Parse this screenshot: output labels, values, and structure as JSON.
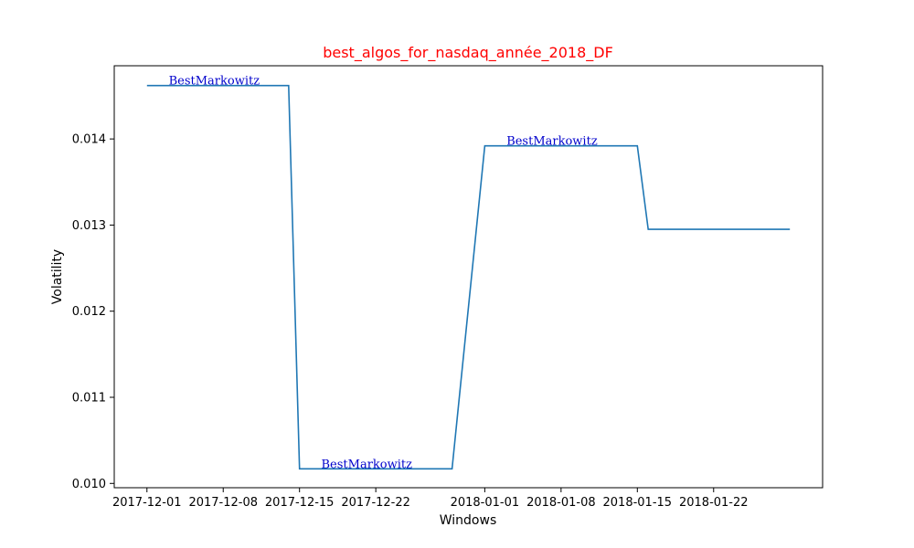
{
  "chart_data": {
    "type": "line",
    "title": "best_algos_for_nasdaq_année_2018_DF",
    "xlabel": "Windows",
    "ylabel": "Volatility",
    "colors": {
      "line": "#1f77b4",
      "title": "#ff0000",
      "annotation": "#0000cc"
    },
    "x_ticks": [
      "2017-12-01",
      "2017-12-08",
      "2017-12-15",
      "2017-12-22",
      "2018-01-01",
      "2018-01-08",
      "2018-01-15",
      "2018-01-22"
    ],
    "y_ticks": [
      "0.010",
      "0.011",
      "0.012",
      "0.013",
      "0.014"
    ],
    "xlim": [
      "2017-11-28",
      "2018-02-01"
    ],
    "ylim": [
      0.00995,
      0.01485
    ],
    "grid": false,
    "legend": "none",
    "series": [
      {
        "x": [
          "2017-12-01",
          "2017-12-14",
          "2017-12-15",
          "2017-12-29",
          "2018-01-01",
          "2018-01-15",
          "2018-01-16",
          "2018-01-29"
        ],
        "y": [
          0.01462,
          0.01462,
          0.01017,
          0.01017,
          0.01392,
          0.01392,
          0.01295,
          0.01295
        ]
      }
    ],
    "annotations": [
      {
        "text": "BestMarkowitz",
        "x": "2017-12-03",
        "y": 0.01462
      },
      {
        "text": "BestMarkowitz",
        "x": "2017-12-17",
        "y": 0.01017
      },
      {
        "text": "BestMarkowitz",
        "x": "2018-01-03",
        "y": 0.01392
      }
    ]
  }
}
